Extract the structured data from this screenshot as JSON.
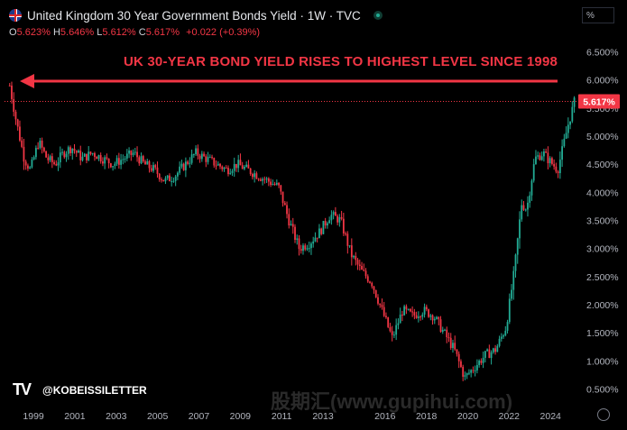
{
  "header": {
    "title": "United Kingdom 30 Year Government Bonds Yield · 1W · TVC",
    "flag_icon": "uk-flag-icon",
    "ohlc": {
      "o_label": "O",
      "o_value": "5.623%",
      "h_label": "H",
      "h_value": "5.646%",
      "l_label": "L",
      "l_value": "5.612%",
      "c_label": "C",
      "c_value": "5.617%",
      "change": "+0.022 (+0.39%)"
    }
  },
  "unit_label": "%",
  "headline": "UK 30-YEAR BOND YIELD RISES TO HIGHEST LEVEL SINCE 1998",
  "brand": {
    "logo": "TV",
    "name": "@KOBEISSILETTER"
  },
  "watermark": "股期汇(www.gupihui.com)",
  "colors": {
    "up": "#22ab94",
    "down": "#f23645",
    "accent": "#f23645",
    "background": "#000000"
  },
  "chart_data": {
    "type": "candlestick",
    "title": "United Kingdom 30 Year Government Bonds Yield",
    "interval": "1W",
    "ylabel": "%",
    "ylim": [
      0.25,
      6.7
    ],
    "y_ticks": [
      "6.500%",
      "6.000%",
      "5.500%",
      "5.000%",
      "4.500%",
      "4.000%",
      "3.500%",
      "3.000%",
      "2.500%",
      "2.000%",
      "1.500%",
      "1.000%",
      "0.500%"
    ],
    "x_ticks": [
      "1999",
      "2001",
      "2003",
      "2005",
      "2007",
      "2009",
      "2011",
      "2013",
      "2016",
      "2018",
      "2020",
      "2022",
      "2024"
    ],
    "last_value": 5.617,
    "last_value_label": "5.617%",
    "reference_line": 5.617,
    "series": [
      {
        "x": [
          1998.0,
          1998.3,
          1998.7,
          1999.0,
          1999.4,
          1999.8,
          2000.2,
          2000.6,
          2001.0,
          2001.5,
          2002.0,
          2002.5,
          2003.0,
          2003.5,
          2004.0,
          2004.5,
          2005.0,
          2005.5,
          2006.0,
          2006.5,
          2007.0,
          2007.5,
          2008.0,
          2008.5,
          2009.0,
          2009.5,
          2010.0,
          2010.5,
          2011.0,
          2011.5,
          2012.0,
          2012.5,
          2013.0,
          2013.5,
          2014.0,
          2014.5,
          2015.0,
          2015.5,
          2016.0,
          2016.5,
          2017.0,
          2017.5,
          2018.0,
          2018.5,
          2019.0,
          2019.5,
          2020.0,
          2020.5,
          2021.0,
          2021.5,
          2022.0,
          2022.4,
          2022.75,
          2023.0,
          2023.4,
          2023.8,
          2024.0,
          2024.5,
          2025.0,
          2025.3
        ],
        "values": [
          5.9,
          5.3,
          4.6,
          4.4,
          4.9,
          4.6,
          4.5,
          4.7,
          4.8,
          4.6,
          4.7,
          4.6,
          4.5,
          4.6,
          4.7,
          4.5,
          4.4,
          4.2,
          4.3,
          4.5,
          4.7,
          4.6,
          4.5,
          4.4,
          4.5,
          4.4,
          4.3,
          4.2,
          4.1,
          3.5,
          3.0,
          3.1,
          3.3,
          3.6,
          3.5,
          2.9,
          2.6,
          2.4,
          1.9,
          1.4,
          1.9,
          1.8,
          1.9,
          1.8,
          1.5,
          1.2,
          0.7,
          0.9,
          1.1,
          1.2,
          1.6,
          2.6,
          3.8,
          3.7,
          4.6,
          4.7,
          4.6,
          4.4,
          5.2,
          5.6
        ]
      }
    ]
  }
}
